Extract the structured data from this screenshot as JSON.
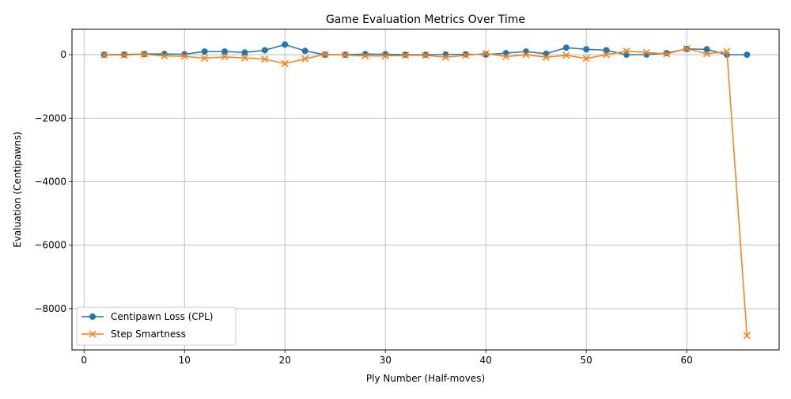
{
  "chart_data": {
    "type": "line",
    "title": "Game Evaluation Metrics Over Time",
    "xlabel": "Ply Number (Half-moves)",
    "ylabel": "Evaluation (Centipawns)",
    "xlim": [
      -1.2,
      69.2
    ],
    "ylim": [
      -9300,
      800
    ],
    "xticks": [
      0,
      10,
      20,
      30,
      40,
      50,
      60
    ],
    "yticks": [
      -8000,
      -6000,
      -4000,
      -2000,
      0
    ],
    "ytick_labels": [
      "−8000",
      "−6000",
      "−4000",
      "−2000",
      "0"
    ],
    "grid": true,
    "legend_position": "lower-left",
    "x": [
      2,
      4,
      6,
      8,
      10,
      12,
      14,
      16,
      18,
      20,
      22,
      24,
      26,
      28,
      30,
      32,
      34,
      36,
      38,
      40,
      42,
      44,
      46,
      48,
      50,
      52,
      54,
      56,
      58,
      60,
      62,
      64,
      66
    ],
    "series": [
      {
        "name": "Centipawn Loss (CPL)",
        "color": "#1f77b4",
        "marker": "circle",
        "values": [
          0,
          5,
          20,
          25,
          15,
          100,
          100,
          70,
          140,
          320,
          120,
          0,
          0,
          20,
          15,
          0,
          0,
          5,
          10,
          5,
          50,
          100,
          30,
          220,
          170,
          140,
          0,
          5,
          50,
          180,
          170,
          0,
          0
        ]
      },
      {
        "name": "Step Smartness",
        "color": "#ff7f0e",
        "marker": "x",
        "values": [
          -10,
          -10,
          10,
          -40,
          -50,
          -110,
          -70,
          -100,
          -140,
          -280,
          -130,
          10,
          -10,
          -40,
          -40,
          -20,
          -20,
          -80,
          -20,
          40,
          -60,
          0,
          -80,
          -20,
          -120,
          0,
          110,
          70,
          20,
          190,
          30,
          100,
          -8850
        ]
      }
    ]
  }
}
